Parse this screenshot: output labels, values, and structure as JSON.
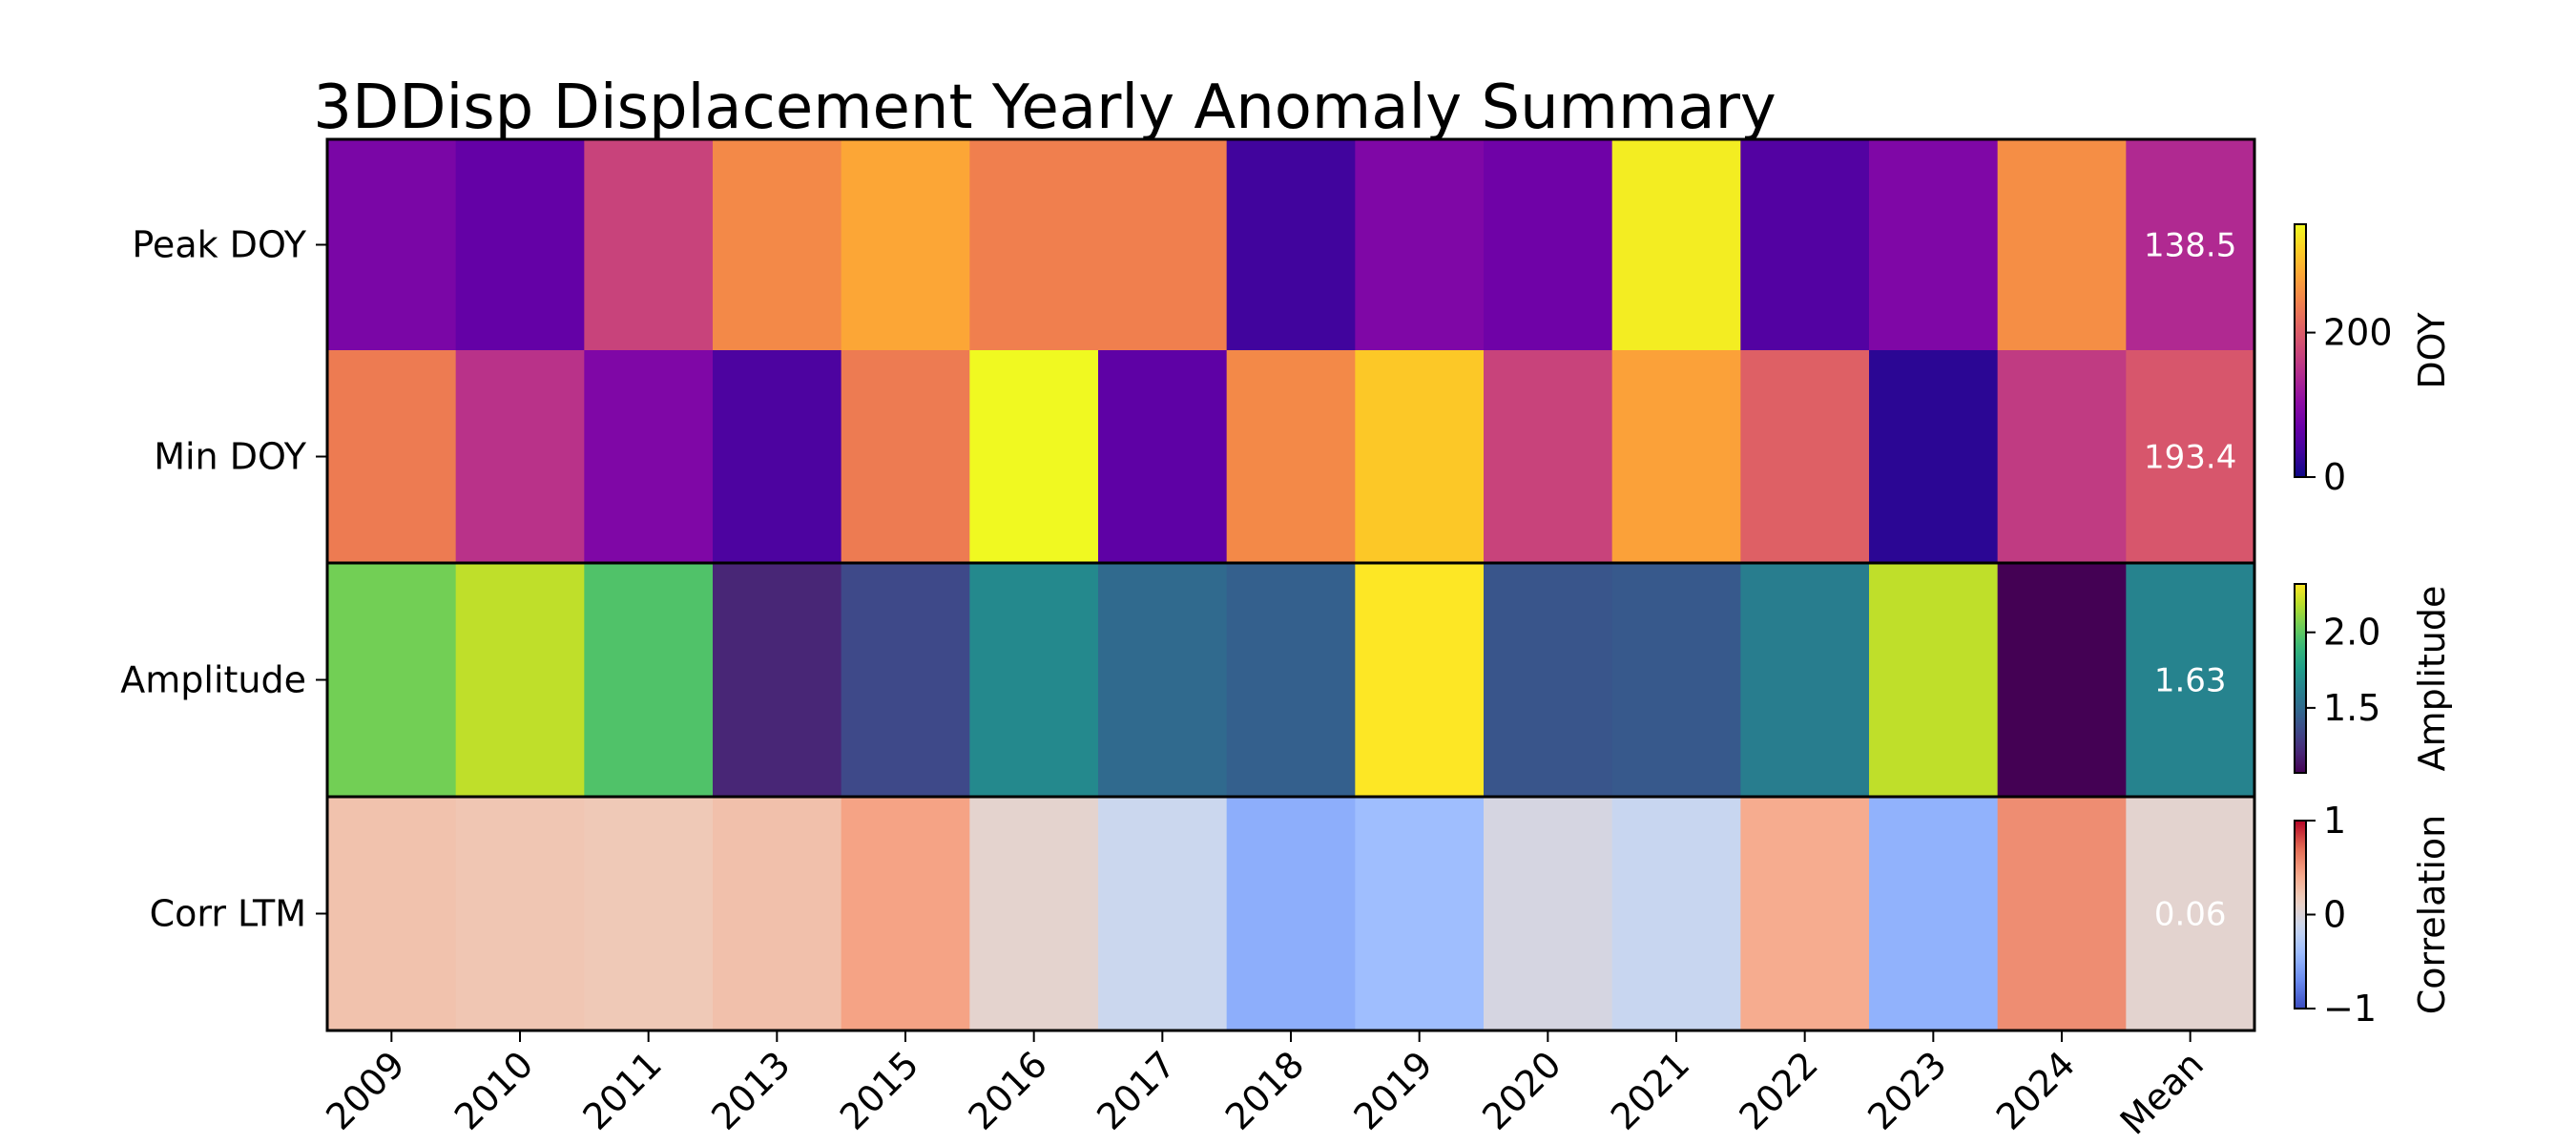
{
  "chart_data": {
    "type": "heatmap",
    "title": "3DDisp Displacement Yearly Anomaly Summary",
    "columns": [
      "2009",
      "2010",
      "2011",
      "2013",
      "2015",
      "2016",
      "2017",
      "2018",
      "2019",
      "2020",
      "2021",
      "2022",
      "2023",
      "2024",
      "Mean"
    ],
    "rows": [
      {
        "label": "Peak DOY",
        "colormap": "plasma",
        "scale": "DOY",
        "values": [
          85,
          65,
          170,
          250,
          280,
          240,
          240,
          35,
          90,
          75,
          340,
          50,
          90,
          255,
          138.5
        ],
        "mean_label": "138.5"
      },
      {
        "label": "Min DOY",
        "colormap": "plasma",
        "scale": "DOY",
        "values": [
          235,
          150,
          90,
          45,
          235,
          350,
          60,
          250,
          310,
          170,
          275,
          205,
          20,
          160,
          193.4
        ],
        "mean_label": "193.4"
      },
      {
        "label": "Amplitude",
        "colormap": "viridis",
        "scale": "Amplitude",
        "values": [
          2.05,
          2.2,
          1.97,
          1.2,
          1.35,
          1.66,
          1.5,
          1.45,
          2.32,
          1.4,
          1.42,
          1.6,
          2.2,
          1.07,
          1.63
        ],
        "mean_label": "1.63"
      },
      {
        "label": "Corr LTM",
        "colormap": "coolwarm",
        "scale": "Correlation",
        "values": [
          0.25,
          0.22,
          0.2,
          0.26,
          0.45,
          0.07,
          -0.13,
          -0.5,
          -0.4,
          -0.05,
          -0.15,
          0.4,
          -0.48,
          0.55,
          0.06
        ],
        "mean_label": "0.06"
      }
    ],
    "colorbars": [
      {
        "label": "DOY",
        "colormap": "plasma",
        "min": 0,
        "max": 350,
        "ticks": [
          0,
          200
        ],
        "tick_labels": [
          "0",
          "200"
        ]
      },
      {
        "label": "Amplitude",
        "colormap": "viridis",
        "min": 1.07,
        "max": 2.32,
        "ticks": [
          1.5,
          2.0
        ],
        "tick_labels": [
          "1.5",
          "2.0"
        ]
      },
      {
        "label": "Correlation",
        "colormap": "coolwarm",
        "min": -1,
        "max": 1,
        "ticks": [
          -1,
          0,
          1
        ],
        "tick_labels": [
          "−1",
          "0",
          "1"
        ]
      }
    ]
  }
}
